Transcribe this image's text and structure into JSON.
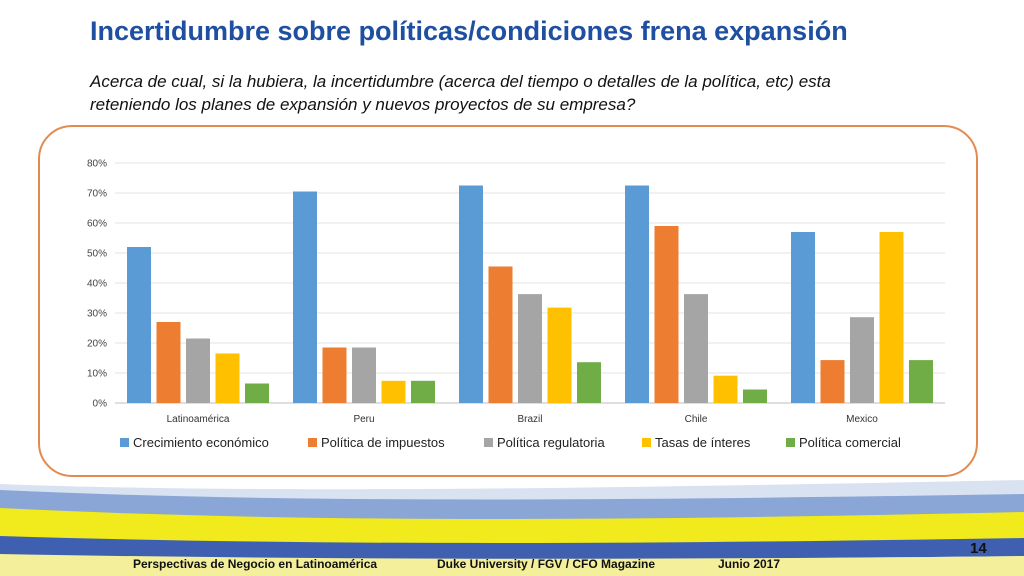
{
  "header": {
    "title": "Incertidumbre sobre políticas/condiciones frena expansión",
    "subtitle": "Acerca de cual, si la hubiera, la incertidumbre (acerca del tiempo o detalles de la política, etc) esta reteniendo los planes de expansión y nuevos proyectos de su empresa?"
  },
  "chart_data": {
    "type": "bar",
    "categories": [
      "Latinoamérica",
      "Peru",
      "Brazil",
      "Chile",
      "Mexico"
    ],
    "series": [
      {
        "name": "Crecimiento económico",
        "color": "#5b9bd5",
        "values": [
          52,
          70.5,
          72.5,
          72.5,
          57
        ]
      },
      {
        "name": "Política de impuestos",
        "color": "#ed7d31",
        "values": [
          27,
          18.5,
          45.5,
          59,
          14.3
        ]
      },
      {
        "name": "Política regulatoria",
        "color": "#a5a5a5",
        "values": [
          21.5,
          18.5,
          36.3,
          36.3,
          28.6
        ]
      },
      {
        "name": "Tasas de ínteres",
        "color": "#ffc000",
        "values": [
          16.5,
          7.4,
          31.8,
          9.1,
          57
        ]
      },
      {
        "name": "Política comercial",
        "color": "#70ad47",
        "values": [
          6.5,
          7.4,
          13.6,
          4.5,
          14.3
        ]
      }
    ],
    "ylim": [
      0,
      80
    ],
    "yticks": [
      "0%",
      "10%",
      "20%",
      "30%",
      "40%",
      "50%",
      "60%",
      "70%",
      "80%"
    ],
    "grid": true,
    "legend_position": "bottom"
  },
  "footer": {
    "left": "Perspectivas de Negocio en Latinoamérica",
    "center": "Duke University / FGV / CFO Magazine",
    "date": "Junio 2017",
    "page": "14"
  }
}
